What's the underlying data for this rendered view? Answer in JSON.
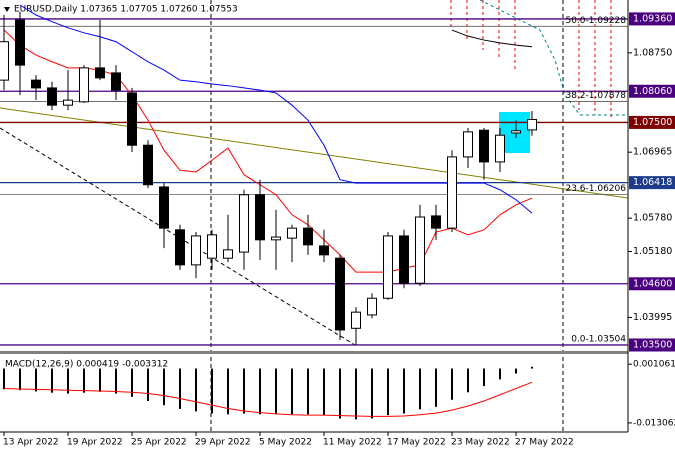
{
  "chart_data": [
    {
      "type": "candlestick",
      "title": "EURUSD,Daily  1.07365 1.07705 1.07260 1.07553",
      "categories": [
        "13 Apr 2022",
        null,
        null,
        null,
        "19 Apr 2022",
        null,
        null,
        null,
        "25 Apr 2022",
        null,
        null,
        null,
        "29 Apr 2022",
        null,
        null,
        null,
        "5 May 2022",
        null,
        null,
        null,
        "11 May 2022",
        null,
        null,
        null,
        "17 May 2022",
        null,
        null,
        null,
        "23 May 2022",
        null,
        null,
        null,
        "27 May 2022",
        null
      ],
      "open": [
        1.0826,
        1.0934,
        1.0826,
        1.0812,
        1.0781,
        1.0787,
        1.0848,
        1.0839,
        1.0803,
        1.0709,
        1.0634,
        1.0557,
        1.0494,
        1.0506,
        1.0506,
        1.0517,
        1.062,
        1.0539,
        1.0542,
        1.056,
        1.0528,
        1.0506,
        1.038,
        1.0404,
        1.0434,
        1.0546,
        1.0461,
        1.0582,
        1.056,
        1.0688,
        1.0736,
        1.0679,
        1.0731,
        1.07365
      ],
      "high": [
        1.0943,
        1.0949,
        1.0835,
        1.0823,
        1.0844,
        1.0853,
        1.0934,
        1.0853,
        1.0812,
        1.0718,
        1.0641,
        1.0566,
        1.0553,
        1.0557,
        1.0584,
        1.0629,
        1.0647,
        1.0593,
        1.0566,
        1.0584,
        1.0557,
        1.0512,
        1.0418,
        1.0443,
        1.0553,
        1.0557,
        1.0602,
        1.0602,
        1.07,
        1.074,
        1.074,
        1.074,
        1.0754,
        1.07705
      ],
      "low": [
        1.0808,
        1.0799,
        1.079,
        1.0772,
        1.0772,
        1.0785,
        1.0826,
        1.079,
        1.0697,
        1.0632,
        1.0524,
        1.0485,
        1.047,
        1.0485,
        1.0499,
        1.0485,
        1.0503,
        1.0485,
        1.0499,
        1.0512,
        1.0499,
        1.0359,
        1.035,
        1.0398,
        1.0431,
        1.0452,
        1.0456,
        1.0539,
        1.0553,
        1.0668,
        1.0647,
        1.0661,
        1.0722,
        1.0726
      ],
      "close": [
        1.0895,
        1.0853,
        1.0812,
        1.0781,
        1.079,
        1.0848,
        1.083,
        1.0808,
        1.0709,
        1.0638,
        1.056,
        1.0494,
        1.0546,
        1.0548,
        1.0521,
        1.062,
        1.0539,
        1.0544,
        1.056,
        1.053,
        1.0512,
        1.0377,
        1.0409,
        1.0434,
        1.0546,
        1.0461,
        1.058,
        1.056,
        1.0688,
        1.0733,
        1.0679,
        1.0727,
        1.0735,
        1.07553
      ],
      "up_color": "#ffffff",
      "down_color": "#000000",
      "lines": [
        {
          "color": "#ff0000",
          "values": [
            1.0916,
            1.0889,
            1.0871,
            1.0859,
            1.0848,
            1.0848,
            1.0844,
            1.0835,
            1.0799,
            1.0754,
            1.07,
            1.0664,
            1.0661,
            1.0682,
            1.0704,
            1.0656,
            1.0638,
            1.062,
            1.0584,
            1.0566,
            1.0539,
            1.0512,
            1.0481,
            1.0481,
            1.0481,
            1.0488,
            1.0494,
            1.0553,
            1.056,
            1.0548,
            1.0557,
            1.0584,
            1.0602,
            1.0614
          ]
        },
        {
          "color": "#0000ff",
          "values": [
            null,
            1.0961,
            1.0943,
            1.0931,
            1.092,
            1.0911,
            1.0904,
            1.0895,
            1.0877,
            1.0859,
            1.0844,
            1.0826,
            1.0823,
            1.0819,
            1.0816,
            1.0812,
            1.0808,
            1.0803,
            1.0781,
            1.0754,
            1.0709,
            1.0647,
            1.0641,
            1.0641,
            1.0641,
            1.0641,
            1.0641,
            1.0641,
            1.0641,
            1.0641,
            1.0641,
            1.0629,
            1.0611,
            1.0587
          ]
        },
        {
          "color": "#000000",
          "values": [
            null,
            null,
            null,
            null,
            null,
            null,
            null,
            null,
            null,
            null,
            null,
            null,
            null,
            null,
            null,
            null,
            null,
            null,
            null,
            null,
            null,
            null,
            null,
            null,
            null,
            null,
            null,
            null,
            1.0916,
            1.0905,
            1.0898,
            1.0893,
            1.0889,
            1.0886
          ]
        }
      ],
      "levels": [
        {
          "value": 1.0936,
          "label": "1.09360",
          "color": "#4b0082"
        },
        {
          "value": 1.0806,
          "label": "1.08060",
          "color": "#4b0082"
        },
        {
          "value": 1.075,
          "label": "1.07500",
          "color": "#800000"
        },
        {
          "value": 1.06418,
          "label": "1.06418",
          "color": "#1e3c8c"
        },
        {
          "value": 1.046,
          "label": "1.04600",
          "color": "#4b0082"
        },
        {
          "value": 1.035,
          "label": "1.03500",
          "color": "#4b0082"
        }
      ],
      "fib_levels": [
        {
          "value": 1.09228,
          "label": "50.0-1.09228"
        },
        {
          "value": 1.07878,
          "label": "38.2-1.07878"
        },
        {
          "value": 1.06206,
          "label": "23.6-1.06206"
        },
        {
          "value": 1.03504,
          "label": "0.0-1.03504"
        }
      ],
      "ylim": [
        1.0341,
        1.097
      ],
      "yticks": [
        {
          "value": 1.0875,
          "label": "1.08750"
        },
        {
          "value": 1.06965,
          "label": "1.06965"
        },
        {
          "value": 1.0578,
          "label": "1.05780"
        },
        {
          "value": 1.0518,
          "label": "1.05180"
        },
        {
          "value": 1.03995,
          "label": "1.03995"
        }
      ]
    },
    {
      "type": "macd",
      "title": "MACD(12,26,9) 0.000419 -0.003312",
      "values": [
        -0.005,
        -0.0052,
        -0.0055,
        -0.0058,
        -0.006,
        -0.0058,
        -0.0056,
        -0.006,
        -0.0068,
        -0.0078,
        -0.0088,
        -0.0097,
        -0.0103,
        -0.0108,
        -0.011,
        -0.0108,
        -0.011,
        -0.011,
        -0.011,
        -0.011,
        -0.0112,
        -0.012,
        -0.0122,
        -0.012,
        -0.0112,
        -0.0108,
        -0.0098,
        -0.0092,
        -0.0075,
        -0.0057,
        -0.0042,
        -0.0026,
        -0.0012,
        0.000419
      ],
      "signal": [
        -0.0048,
        -0.0049,
        -0.005,
        -0.0051,
        -0.0052,
        -0.0053,
        -0.0054,
        -0.0055,
        -0.0057,
        -0.006,
        -0.0065,
        -0.0072,
        -0.008,
        -0.0088,
        -0.0096,
        -0.0102,
        -0.0106,
        -0.0109,
        -0.0111,
        -0.0112,
        -0.0112,
        -0.0113,
        -0.0114,
        -0.0115,
        -0.0115,
        -0.0114,
        -0.0111,
        -0.0107,
        -0.01,
        -0.009,
        -0.0078,
        -0.0063,
        -0.0048,
        -0.003312
      ],
      "color": "#000000",
      "signal_color": "#ff0000",
      "ylim": [
        -0.01525,
        0.0035
      ],
      "yticks": [
        0.001061,
        -0.013062
      ]
    }
  ]
}
